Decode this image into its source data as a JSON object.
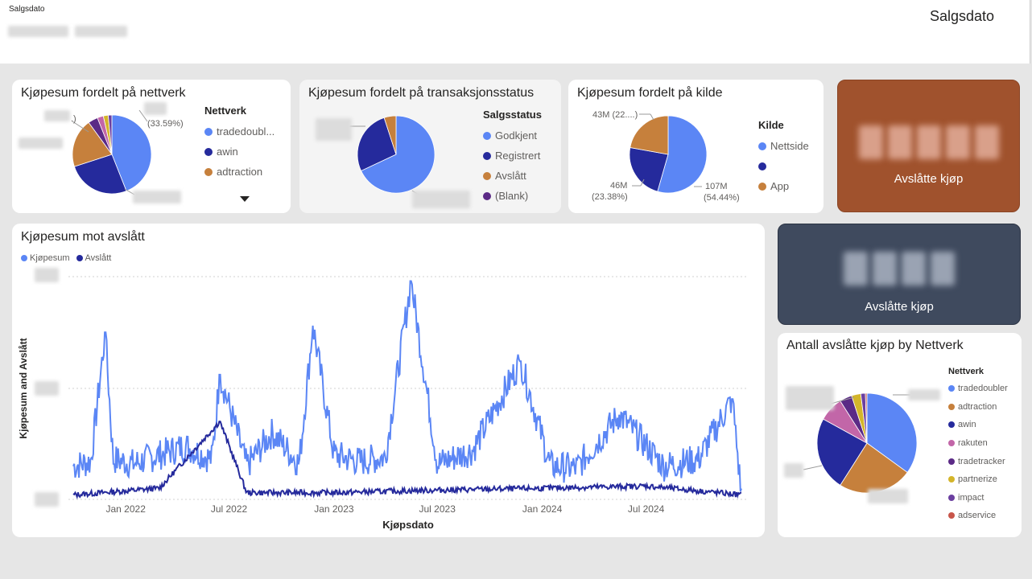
{
  "header": {
    "slicer_label": "Salgsdato",
    "page_title": "Salgsdato"
  },
  "colors": {
    "blue": "#5b86f5",
    "navy": "#252a9c",
    "orange": "#c6803c",
    "purple": "#5b2a86",
    "pink": "#c266a8",
    "olive": "#d4b52a",
    "violet": "#6b3fa0",
    "kpi_orange": "#a0522d",
    "kpi_slate": "#3f4a5e"
  },
  "network_pie": {
    "title": "Kjøpesum fordelt på nettverk",
    "legend_title": "Nettverk",
    "legend_items": [
      "tradedoubl...",
      "awin",
      "adtraction"
    ],
    "legend_colors": [
      "#5b86f5",
      "#252a9c",
      "#c6803c"
    ],
    "top_label": "(33.59%)",
    "slices": [
      {
        "value": 44,
        "color": "#5b86f5"
      },
      {
        "value": 26,
        "color": "#252a9c"
      },
      {
        "value": 20,
        "color": "#c6803c"
      },
      {
        "value": 4,
        "color": "#5b2a86"
      },
      {
        "value": 2.5,
        "color": "#c266a8"
      },
      {
        "value": 2,
        "color": "#d4b52a"
      },
      {
        "value": 1.5,
        "color": "#6b3fa0"
      }
    ]
  },
  "status_pie": {
    "title": "Kjøpesum fordelt på transaksjonsstatus",
    "legend_title": "Salgsstatus",
    "legend_items": [
      "Godkjent",
      "Registrert",
      "Avslått",
      "(Blank)"
    ],
    "legend_colors": [
      "#5b86f5",
      "#252a9c",
      "#c6803c",
      "#5b2a86"
    ],
    "slices": [
      {
        "value": 68,
        "color": "#5b86f5"
      },
      {
        "value": 27,
        "color": "#252a9c"
      },
      {
        "value": 5,
        "color": "#c6803c"
      }
    ]
  },
  "source_pie": {
    "title": "Kjøpesum fordelt på kilde",
    "legend_title": "Kilde",
    "legend_items": [
      "Nettside",
      "",
      "App"
    ],
    "legend_colors": [
      "#5b86f5",
      "#252a9c",
      "#c6803c"
    ],
    "label_top": "43M (22....)",
    "label_left_value": "46M",
    "label_left_pct": "(23.38%)",
    "label_right_value": "107M",
    "label_right_pct": "(54.44%)",
    "slices": [
      {
        "value": 54.44,
        "color": "#5b86f5"
      },
      {
        "value": 23.38,
        "color": "#252a9c"
      },
      {
        "value": 22.18,
        "color": "#c6803c"
      }
    ]
  },
  "kpi_orange": {
    "label": "Avslåtte kjøp"
  },
  "kpi_slate": {
    "label": "Avslåtte kjøp"
  },
  "line_chart": {
    "title": "Kjøpesum mot avslått",
    "legend": [
      "Kjøpesum",
      "Avslått"
    ],
    "ylabel": "Kjøpesum and Avslått",
    "xlabel": "Kjøpsdato",
    "xticks": [
      "Jan 2022",
      "Jul 2022",
      "Jan 2023",
      "Jul 2023",
      "Jan 2024",
      "Jul 2024"
    ]
  },
  "chart_data": {
    "type": "line",
    "title": "Kjøpesum mot avslått",
    "xlabel": "Kjøpsdato",
    "ylabel": "Kjøpesum and Avslått",
    "x_range": [
      "2021-10-01",
      "2024-12-15"
    ],
    "series": [
      {
        "name": "Kjøpesum",
        "color": "#5b86f5",
        "points": [
          [
            "2021-10-01",
            0.15
          ],
          [
            "2021-11-01",
            0.17
          ],
          [
            "2021-11-26",
            0.75
          ],
          [
            "2021-12-10",
            0.18
          ],
          [
            "2022-01-15",
            0.16
          ],
          [
            "2022-03-01",
            0.2
          ],
          [
            "2022-04-15",
            0.24
          ],
          [
            "2022-06-01",
            0.18
          ],
          [
            "2022-06-15",
            0.56
          ],
          [
            "2022-08-01",
            0.15
          ],
          [
            "2022-09-15",
            0.3
          ],
          [
            "2022-11-01",
            0.16
          ],
          [
            "2022-11-25",
            0.78
          ],
          [
            "2023-01-01",
            0.2
          ],
          [
            "2023-02-15",
            0.17
          ],
          [
            "2023-04-01",
            0.19
          ],
          [
            "2023-05-16",
            0.98
          ],
          [
            "2023-07-01",
            0.16
          ],
          [
            "2023-09-01",
            0.22
          ],
          [
            "2023-11-24",
            0.62
          ],
          [
            "2024-01-15",
            0.15
          ],
          [
            "2024-03-01",
            0.14
          ],
          [
            "2024-05-15",
            0.38
          ],
          [
            "2024-08-01",
            0.15
          ],
          [
            "2024-10-01",
            0.18
          ],
          [
            "2024-11-29",
            0.45
          ],
          [
            "2024-12-15",
            0.02
          ]
        ]
      },
      {
        "name": "Avslått",
        "color": "#252a9c",
        "points": [
          [
            "2021-10-01",
            0.02
          ],
          [
            "2022-03-01",
            0.05
          ],
          [
            "2022-06-15",
            0.35
          ],
          [
            "2022-08-01",
            0.03
          ],
          [
            "2023-01-01",
            0.03
          ],
          [
            "2023-06-01",
            0.04
          ],
          [
            "2024-01-01",
            0.05
          ],
          [
            "2024-07-01",
            0.06
          ],
          [
            "2024-12-15",
            0.02
          ]
        ]
      }
    ]
  },
  "count_pie": {
    "title": "Antall avslåtte kjøp by Nettverk",
    "legend_title": "Nettverk",
    "legend_items": [
      "tradedoubler",
      "adtraction",
      "awin",
      "rakuten",
      "tradetracker",
      "partnerize",
      "impact",
      "adservice"
    ],
    "legend_colors": [
      "#5b86f5",
      "#c6803c",
      "#252a9c",
      "#c266a8",
      "#5b2a86",
      "#d4b52a",
      "#6b3fa0",
      "#c8554a"
    ],
    "slices": [
      {
        "value": 35,
        "color": "#5b86f5"
      },
      {
        "value": 24,
        "color": "#c6803c"
      },
      {
        "value": 24,
        "color": "#252a9c"
      },
      {
        "value": 8,
        "color": "#c266a8"
      },
      {
        "value": 4,
        "color": "#5b2a86"
      },
      {
        "value": 3,
        "color": "#d4b52a"
      },
      {
        "value": 1.5,
        "color": "#6b3fa0"
      },
      {
        "value": 0.5,
        "color": "#c8554a"
      }
    ]
  }
}
